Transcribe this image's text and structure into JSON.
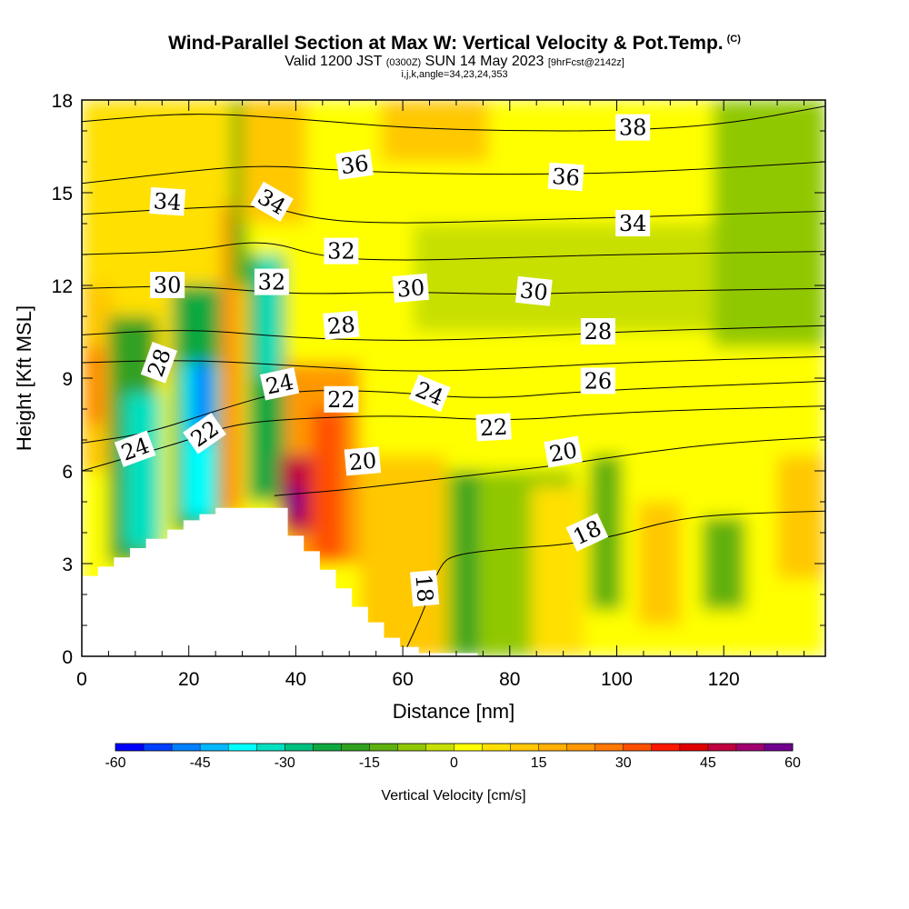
{
  "header": {
    "title": "Wind-Parallel Section at Max W: Vertical Velocity & Pot.Temp.",
    "title_mark": "(C)",
    "subtitle_pre": "Valid 1200 JST",
    "subtitle_utc": "(0300Z)",
    "subtitle_mid": "SUN 14 May 2023",
    "subtitle_fcst": "[9hrFcst@2142z]",
    "indices": "i,j,k,angle=34,23,24,353"
  },
  "chart_data": {
    "type": "heatmap",
    "xlabel": "Distance [nm]",
    "ylabel": "Height [Kft MSL]",
    "xlim": [
      0,
      139
    ],
    "ylim": [
      0,
      18
    ],
    "x_ticks": [
      "0",
      "20",
      "40",
      "60",
      "80",
      "100",
      "120"
    ],
    "y_ticks": [
      "0",
      "3",
      "6",
      "9",
      "12",
      "15",
      "18"
    ],
    "colorbar": {
      "label": "Vertical Velocity [cm/s]",
      "ticks": [
        "-60",
        "-45",
        "-30",
        "-15",
        "0",
        "15",
        "30",
        "45",
        "60"
      ],
      "range": [
        -60,
        60
      ],
      "step": 5,
      "colors": [
        "#0000ff",
        "#0040ff",
        "#0080ff",
        "#00b8ff",
        "#00ffff",
        "#00e0c0",
        "#00c080",
        "#10a840",
        "#30a020",
        "#60b010",
        "#90c800",
        "#c8e000",
        "#ffff00",
        "#ffe000",
        "#ffc800",
        "#ffb000",
        "#ff9800",
        "#ff7800",
        "#ff5000",
        "#ff1800",
        "#e00000",
        "#c00040",
        "#a00070",
        "#700090"
      ]
    },
    "terrain_nm_kft": [
      [
        0,
        2.6
      ],
      [
        3,
        2.6
      ],
      [
        3,
        2.9
      ],
      [
        6,
        2.9
      ],
      [
        6,
        3.2
      ],
      [
        9,
        3.2
      ],
      [
        9,
        3.5
      ],
      [
        12,
        3.5
      ],
      [
        12,
        3.8
      ],
      [
        16,
        3.8
      ],
      [
        16,
        4.1
      ],
      [
        19,
        4.1
      ],
      [
        19,
        4.4
      ],
      [
        22,
        4.4
      ],
      [
        22,
        4.6
      ],
      [
        25,
        4.6
      ],
      [
        25,
        4.8
      ],
      [
        38.5,
        4.8
      ],
      [
        38.5,
        3.9
      ],
      [
        41.5,
        3.9
      ],
      [
        41.5,
        3.4
      ],
      [
        44.5,
        3.4
      ],
      [
        44.5,
        2.8
      ],
      [
        47.5,
        2.8
      ],
      [
        47.5,
        2.2
      ],
      [
        50.5,
        2.2
      ],
      [
        50.5,
        1.6
      ],
      [
        53.5,
        1.6
      ],
      [
        53.5,
        1.1
      ],
      [
        56.5,
        1.1
      ],
      [
        56.5,
        0.6
      ],
      [
        59.5,
        0.6
      ],
      [
        59.5,
        0.3
      ],
      [
        63,
        0.3
      ],
      [
        63,
        0.1
      ],
      [
        74,
        0.1
      ],
      [
        74,
        0
      ]
    ],
    "w_cells_cm_s": [
      {
        "x": 0,
        "y": 0,
        "w": 139,
        "h": 18,
        "v": 3
      },
      {
        "x": 0,
        "y": 9,
        "w": 28,
        "h": 9,
        "v": 8
      },
      {
        "x": 80,
        "y": 0,
        "w": 59,
        "h": 18,
        "v": 2
      },
      {
        "x": 0,
        "y": 6,
        "w": 6,
        "h": 6,
        "v": 12
      },
      {
        "x": 1,
        "y": 7.5,
        "w": 3,
        "h": 2.5,
        "v": 28
      },
      {
        "x": 5,
        "y": 3,
        "w": 9,
        "h": 8,
        "v": -20
      },
      {
        "x": 8,
        "y": 3.5,
        "w": 7,
        "h": 5,
        "v": -32
      },
      {
        "x": 17,
        "y": 4,
        "w": 9,
        "h": 8,
        "v": -25
      },
      {
        "x": 19,
        "y": 4.5,
        "w": 6,
        "h": 5,
        "v": -40
      },
      {
        "x": 21,
        "y": 7,
        "w": 3,
        "h": 2.5,
        "v": -52
      },
      {
        "x": 26,
        "y": 4.6,
        "w": 4,
        "h": 10,
        "v": 22
      },
      {
        "x": 28,
        "y": 12,
        "w": 3,
        "h": 6,
        "v": -15
      },
      {
        "x": 31,
        "y": 5,
        "w": 7,
        "h": 8,
        "v": -22
      },
      {
        "x": 33,
        "y": 9,
        "w": 4,
        "h": 4,
        "v": -32
      },
      {
        "x": 38,
        "y": 3,
        "w": 14,
        "h": 6.5,
        "v": 20
      },
      {
        "x": 37,
        "y": 4,
        "w": 7,
        "h": 2.5,
        "v": 45
      },
      {
        "x": 38.5,
        "y": 4.5,
        "w": 2.5,
        "h": 1,
        "v": 58
      },
      {
        "x": 43,
        "y": 3,
        "w": 6,
        "h": 5,
        "v": 32
      },
      {
        "x": 52,
        "y": 0,
        "w": 16,
        "h": 6.5,
        "v": 10
      },
      {
        "x": 68,
        "y": 0,
        "w": 24,
        "h": 6,
        "v": -10
      },
      {
        "x": 70,
        "y": 0,
        "w": 4,
        "h": 6,
        "v": -17
      },
      {
        "x": 84,
        "y": 0,
        "w": 10,
        "h": 5.5,
        "v": 8
      },
      {
        "x": 95,
        "y": 1.5,
        "w": 6,
        "h": 5,
        "v": -12
      },
      {
        "x": 104,
        "y": 1,
        "w": 8,
        "h": 4,
        "v": 12
      },
      {
        "x": 116,
        "y": 1.5,
        "w": 8,
        "h": 3,
        "v": -14
      },
      {
        "x": 130,
        "y": 2.5,
        "w": 9,
        "h": 4,
        "v": 14
      },
      {
        "x": 0,
        "y": 16.5,
        "w": 15,
        "h": 1.5,
        "v": 8
      },
      {
        "x": 30,
        "y": 14,
        "w": 12,
        "h": 4,
        "v": 12
      },
      {
        "x": 56,
        "y": 16,
        "w": 20,
        "h": 2,
        "v": 12
      },
      {
        "x": 62,
        "y": 10.5,
        "w": 77,
        "h": 3.5,
        "v": -4
      },
      {
        "x": 118,
        "y": 10,
        "w": 21,
        "h": 8,
        "v": -6
      }
    ],
    "theta_contours_c": [
      {
        "value": 18,
        "pts": [
          [
            60,
            0
          ],
          [
            64,
            1.5
          ],
          [
            67,
            3
          ],
          [
            70,
            3.3
          ],
          [
            80,
            3.5
          ],
          [
            90,
            3.6
          ],
          [
            100,
            3.9
          ],
          [
            110,
            4.4
          ],
          [
            120,
            4.6
          ],
          [
            139,
            4.7
          ]
        ]
      },
      {
        "value": 20,
        "pts": [
          [
            36,
            5.2
          ],
          [
            50,
            5.4
          ],
          [
            60,
            5.6
          ],
          [
            75,
            5.9
          ],
          [
            90,
            6.2
          ],
          [
            105,
            6.6
          ],
          [
            120,
            6.9
          ],
          [
            139,
            7.1
          ]
        ]
      },
      {
        "value": 22,
        "pts": [
          [
            0,
            6.0
          ],
          [
            10,
            6.5
          ],
          [
            20,
            7.0
          ],
          [
            28,
            7.5
          ],
          [
            40,
            7.7
          ],
          [
            60,
            7.8
          ],
          [
            80,
            7.6
          ],
          [
            100,
            7.9
          ],
          [
            139,
            8.1
          ]
        ]
      },
      {
        "value": 24,
        "pts": [
          [
            0,
            6.9
          ],
          [
            12,
            7.2
          ],
          [
            26,
            8.0
          ],
          [
            38,
            8.6
          ],
          [
            55,
            8.6
          ],
          [
            75,
            8.3
          ],
          [
            95,
            8.6
          ],
          [
            139,
            8.9
          ]
        ]
      },
      {
        "value": 26,
        "pts": [
          [
            0,
            9.5
          ],
          [
            20,
            9.6
          ],
          [
            40,
            9.4
          ],
          [
            60,
            9.2
          ],
          [
            80,
            9.3
          ],
          [
            100,
            9.5
          ],
          [
            139,
            9.7
          ]
        ]
      },
      {
        "value": 28,
        "pts": [
          [
            0,
            10.4
          ],
          [
            20,
            10.6
          ],
          [
            40,
            10.3
          ],
          [
            60,
            10.2
          ],
          [
            80,
            10.3
          ],
          [
            100,
            10.5
          ],
          [
            139,
            10.7
          ]
        ]
      },
      {
        "value": 30,
        "pts": [
          [
            0,
            11.9
          ],
          [
            20,
            12.0
          ],
          [
            40,
            11.7
          ],
          [
            60,
            11.8
          ],
          [
            80,
            11.7
          ],
          [
            100,
            11.8
          ],
          [
            139,
            11.9
          ]
        ]
      },
      {
        "value": 32,
        "pts": [
          [
            0,
            13.0
          ],
          [
            20,
            13.1
          ],
          [
            34,
            13.5
          ],
          [
            45,
            12.9
          ],
          [
            60,
            12.8
          ],
          [
            80,
            12.9
          ],
          [
            100,
            13.0
          ],
          [
            139,
            13.1
          ]
        ]
      },
      {
        "value": 34,
        "pts": [
          [
            0,
            14.3
          ],
          [
            20,
            14.5
          ],
          [
            34,
            14.6
          ],
          [
            45,
            14.1
          ],
          [
            60,
            14.0
          ],
          [
            80,
            14.1
          ],
          [
            100,
            14.2
          ],
          [
            139,
            14.4
          ]
        ]
      },
      {
        "value": 36,
        "pts": [
          [
            0,
            15.3
          ],
          [
            20,
            15.7
          ],
          [
            34,
            15.9
          ],
          [
            50,
            15.7
          ],
          [
            70,
            15.6
          ],
          [
            90,
            15.6
          ],
          [
            110,
            15.7
          ],
          [
            139,
            16.0
          ]
        ]
      },
      {
        "value": 38,
        "pts": [
          [
            0,
            17.3
          ],
          [
            20,
            17.6
          ],
          [
            40,
            17.4
          ],
          [
            60,
            17.1
          ],
          [
            80,
            17.0
          ],
          [
            100,
            17.0
          ],
          [
            120,
            17.2
          ],
          [
            139,
            17.8
          ]
        ]
      }
    ],
    "contour_labels": [
      {
        "text": "38",
        "x": 103,
        "y": 17.1,
        "angle": 0
      },
      {
        "text": "36",
        "x": 51,
        "y": 15.9,
        "angle": -8
      },
      {
        "text": "36",
        "x": 90.5,
        "y": 15.5,
        "angle": 4
      },
      {
        "text": "34",
        "x": 16,
        "y": 14.7,
        "angle": 4
      },
      {
        "text": "34",
        "x": 35.5,
        "y": 14.7,
        "angle": 30
      },
      {
        "text": "34",
        "x": 103,
        "y": 14.0,
        "angle": 0
      },
      {
        "text": "32",
        "x": 48.5,
        "y": 13.1,
        "angle": 0
      },
      {
        "text": "32",
        "x": 35.5,
        "y": 12.1,
        "angle": 0
      },
      {
        "text": "30",
        "x": 16,
        "y": 12.0,
        "angle": 0
      },
      {
        "text": "30",
        "x": 61.5,
        "y": 11.9,
        "angle": -5
      },
      {
        "text": "30",
        "x": 84.5,
        "y": 11.8,
        "angle": 6
      },
      {
        "text": "28",
        "x": 48.5,
        "y": 10.7,
        "angle": -5
      },
      {
        "text": "28",
        "x": 96.5,
        "y": 10.5,
        "angle": 0
      },
      {
        "text": "28",
        "x": 14.5,
        "y": 9.5,
        "angle": -70
      },
      {
        "text": "26",
        "x": 96.5,
        "y": 8.9,
        "angle": 0
      },
      {
        "text": "24",
        "x": 37,
        "y": 8.8,
        "angle": -12
      },
      {
        "text": "24",
        "x": 65,
        "y": 8.5,
        "angle": 22
      },
      {
        "text": "24",
        "x": 10,
        "y": 6.7,
        "angle": -20
      },
      {
        "text": "22",
        "x": 48.5,
        "y": 8.3,
        "angle": 0
      },
      {
        "text": "22",
        "x": 77,
        "y": 7.4,
        "angle": -3
      },
      {
        "text": "22",
        "x": 23,
        "y": 7.2,
        "angle": -35
      },
      {
        "text": "20",
        "x": 52.5,
        "y": 6.3,
        "angle": -5
      },
      {
        "text": "20",
        "x": 90,
        "y": 6.6,
        "angle": -10
      },
      {
        "text": "18",
        "x": 94.5,
        "y": 4.0,
        "angle": -25
      },
      {
        "text": "18",
        "x": 64,
        "y": 2.2,
        "angle": 85
      }
    ]
  }
}
